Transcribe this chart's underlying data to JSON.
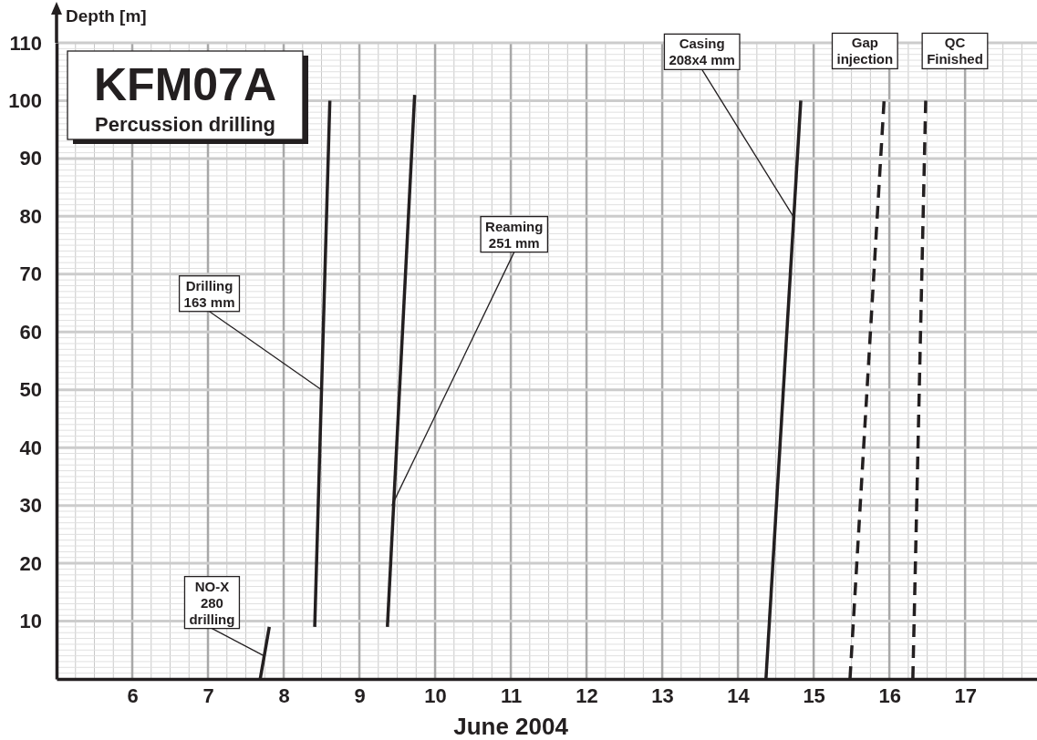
{
  "chart_data": {
    "type": "line",
    "title": "KFM07A",
    "subtitle": "Percussion drilling",
    "xlabel": "June 2004",
    "ylabel": "Depth [m]",
    "xlim": [
      5,
      17.95
    ],
    "xticks": [
      6,
      7,
      8,
      9,
      10,
      11,
      12,
      13,
      14,
      15,
      16,
      17
    ],
    "ylim": [
      0,
      110
    ],
    "yticks": [
      10,
      20,
      30,
      40,
      50,
      60,
      70,
      80,
      90,
      100,
      110
    ],
    "grid": true,
    "marker": "none",
    "series": [
      {
        "color": "#231f20",
        "x": [
          7.69,
          7.81
        ],
        "values": [
          0,
          9
        ]
      },
      {
        "color": "#231f20",
        "x": [
          8.41,
          8.61
        ],
        "values": [
          9,
          100
        ]
      },
      {
        "color": "#231f20",
        "x": [
          9.37,
          9.73
        ],
        "values": [
          9,
          101
        ]
      },
      {
        "color": "#231f20",
        "x": [
          14.37,
          14.83
        ],
        "values": [
          0,
          100
        ]
      },
      {
        "color": "#231f20",
        "x": [
          15.48,
          15.93
        ],
        "values": [
          0,
          100
        ],
        "line_style": "dashed"
      },
      {
        "color": "#231f20",
        "x": [
          16.31,
          16.48
        ],
        "values": [
          0,
          100
        ],
        "line_style": "dashed"
      }
    ],
    "annotations": [
      {
        "text": "NO-X\n280\ndrilling",
        "x": 7.74,
        "y": 4
      },
      {
        "text": "Drilling\n163 mm",
        "x": 8.5,
        "y": 50
      },
      {
        "text": "Reaming\n251 mm",
        "x": 9.43,
        "y": 30
      },
      {
        "text": "Casing\n208x4 mm",
        "x": 14.73,
        "y": 80
      },
      {
        "text": "Gap\ninjection",
        "x": 15.93,
        "y": 100
      },
      {
        "text": "QC\nFinished",
        "x": 16.48,
        "y": 100
      }
    ]
  }
}
